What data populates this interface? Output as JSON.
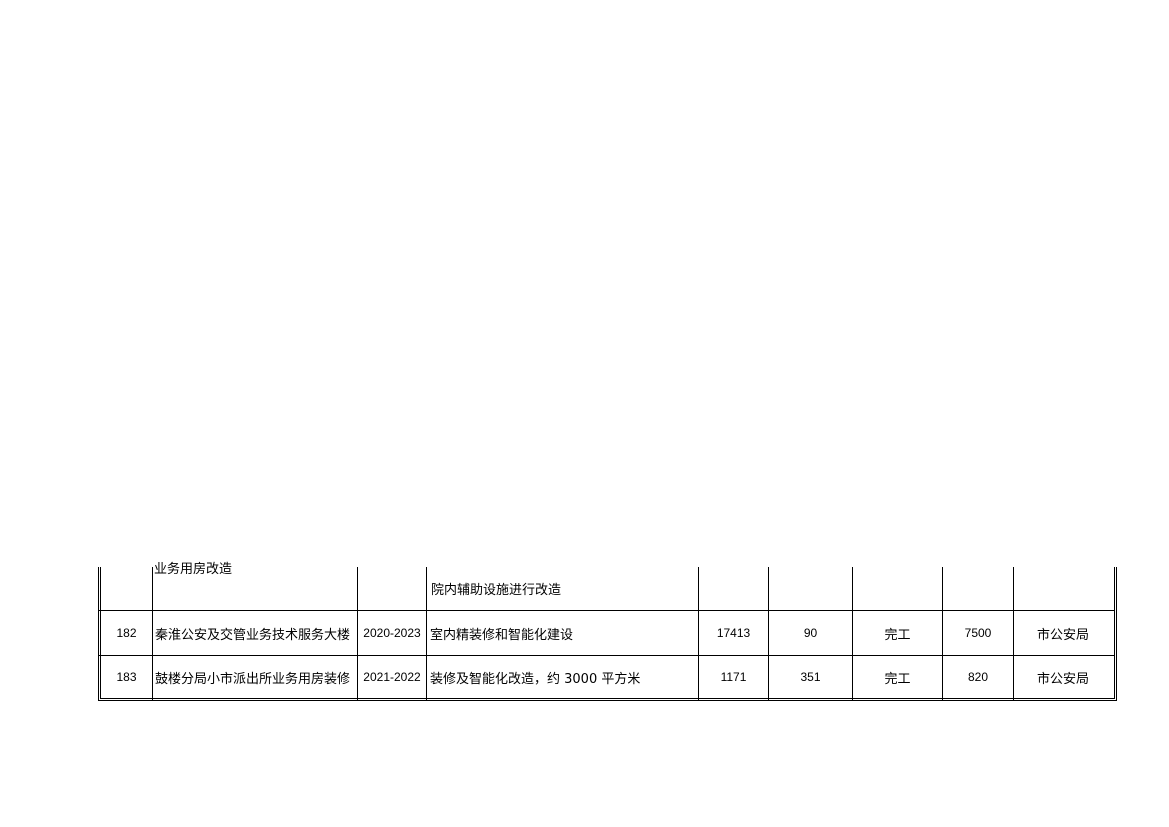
{
  "table": {
    "rows": [
      {
        "no": "",
        "name": "业务用房改造",
        "period": "",
        "content": "院内辅助设施进行改造",
        "area": "",
        "v1": "",
        "status": "",
        "invest": "",
        "dept": ""
      },
      {
        "no": "182",
        "name": "秦淮公安及交管业务技术服务大楼",
        "period": "2020-2023",
        "content": "室内精装修和智能化建设",
        "area": "17413",
        "v1": "90",
        "status": "完工",
        "invest": "7500",
        "dept": "市公安局"
      },
      {
        "no": "183",
        "name": "鼓楼分局小市派出所业务用房装修",
        "period": "2021-2022",
        "content": "装修及智能化改造，约 3000 平方米",
        "area": "1171",
        "v1": "351",
        "status": "完工",
        "invest": "820",
        "dept": "市公安局"
      }
    ]
  }
}
